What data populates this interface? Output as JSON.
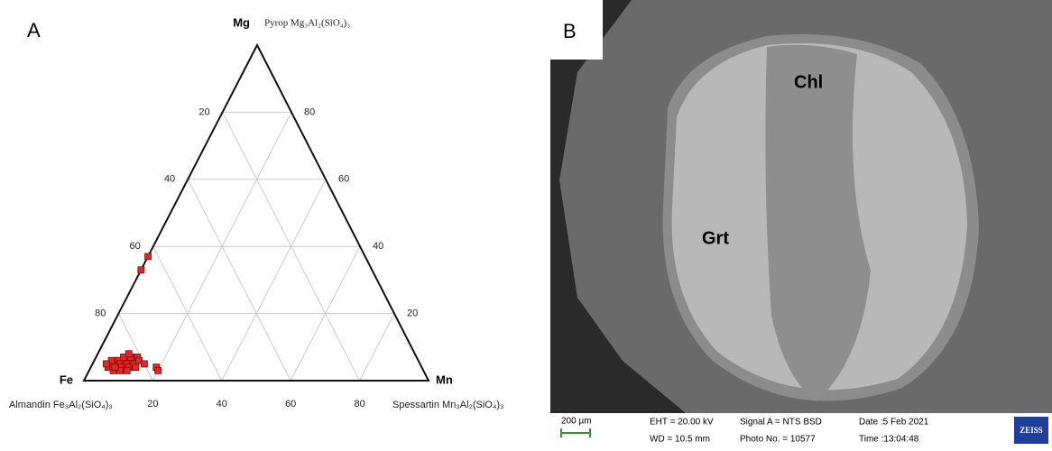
{
  "chart_data": {
    "type": "ternary",
    "panel_label": "A",
    "vertices": {
      "top": "Mg",
      "left": "Fe",
      "right": "Mn"
    },
    "endmembers": {
      "top": "Pyrop Mg₃Al₂(SiO₄)₃",
      "left": "Almandin Fe₃Al₂(SiO₄)₃",
      "right": "Spessartin Mn₃Al₂(SiO₄)₃"
    },
    "ticks": [
      20,
      40,
      60,
      80
    ],
    "grid": true,
    "color": "#e02828",
    "points": {
      "fe": [
        91,
        89,
        87,
        87,
        87,
        85,
        85,
        90,
        85,
        83,
        85,
        83,
        83,
        88,
        89,
        89,
        83,
        91,
        81,
        86,
        83,
        81,
        80,
        77,
        77,
        63,
        67
      ],
      "mg": [
        4,
        5,
        6,
        5,
        4,
        6,
        7,
        3,
        5,
        6,
        4,
        7,
        5,
        3,
        6,
        4,
        8,
        5,
        7,
        3,
        4,
        6,
        5,
        4,
        3,
        37,
        33
      ],
      "mn": [
        5,
        6,
        7,
        8,
        9,
        9,
        8,
        7,
        10,
        11,
        11,
        10,
        12,
        9,
        5,
        7,
        9,
        4,
        12,
        11,
        13,
        13,
        15,
        19,
        20,
        0,
        0
      ]
    }
  },
  "image": {
    "panel_label": "B",
    "minerals": [
      "Chl",
      "Grt"
    ],
    "scale_bar": "200 µm",
    "info": [
      "EHT = 20.00 kV",
      "WD = 10.5 mm",
      "Signal A = NTS BSD",
      "Photo No. = 10577",
      "Date :5 Feb 2021",
      "Time :13:04:48"
    ],
    "brand": "ZEISS"
  }
}
